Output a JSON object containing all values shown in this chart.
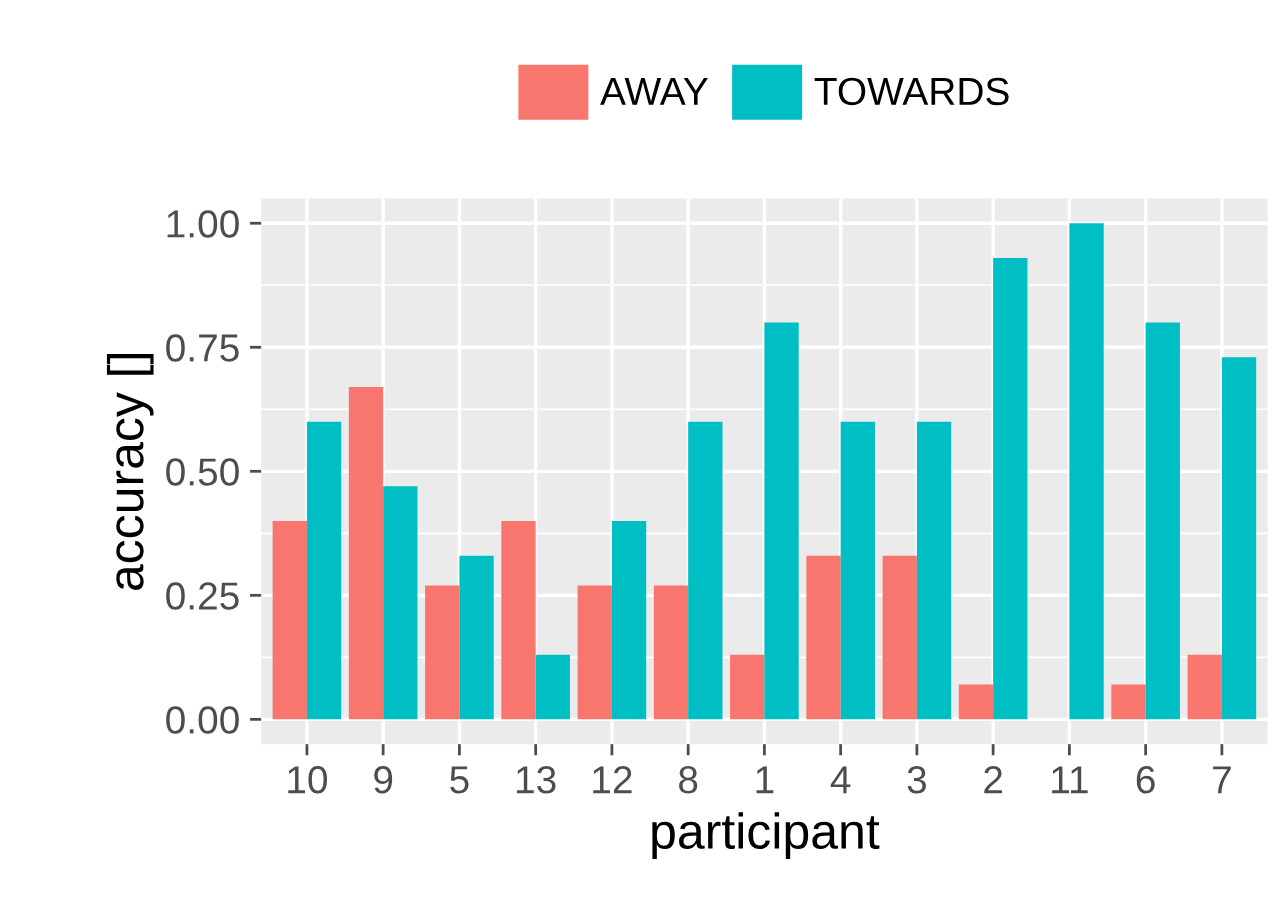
{
  "chart_data": {
    "type": "bar",
    "xlabel": "participant",
    "ylabel": "accuracy []",
    "categories": [
      "10",
      "9",
      "5",
      "13",
      "12",
      "8",
      "1",
      "4",
      "3",
      "2",
      "11",
      "6",
      "7"
    ],
    "series": [
      {
        "name": "AWAY",
        "color": "#f8766d",
        "values": [
          0.4,
          0.67,
          0.27,
          0.4,
          0.27,
          0.27,
          0.13,
          0.33,
          0.33,
          0.07,
          0.0,
          0.07,
          0.13
        ]
      },
      {
        "name": "TOWARDS",
        "color": "#00bfc4",
        "values": [
          0.6,
          0.47,
          0.33,
          0.13,
          0.4,
          0.6,
          0.8,
          0.6,
          0.6,
          0.93,
          1.0,
          0.8,
          0.73
        ]
      }
    ],
    "ylim": [
      -0.05,
      1.05
    ],
    "yticks": [
      {
        "value": 0,
        "label": "0.00"
      },
      {
        "value": 0.25,
        "label": "0.25"
      },
      {
        "value": 0.5,
        "label": "0.50"
      },
      {
        "value": 0.75,
        "label": "0.75"
      },
      {
        "value": 1,
        "label": "1.00"
      }
    ],
    "grid": true,
    "legend": "top"
  }
}
